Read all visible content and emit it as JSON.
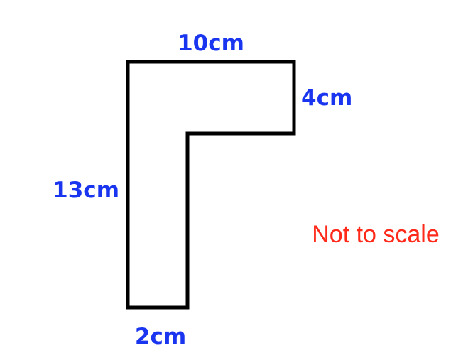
{
  "diagram": {
    "labels": {
      "top_width": "10cm",
      "right_height": "4cm",
      "left_height": "13cm",
      "bottom_width": "2cm"
    },
    "note": "Not to scale"
  },
  "colors": {
    "outline": "#000000",
    "dimension_text": "#1a35f0",
    "note_text": "#ff2a1a",
    "background": "#ffffff"
  }
}
